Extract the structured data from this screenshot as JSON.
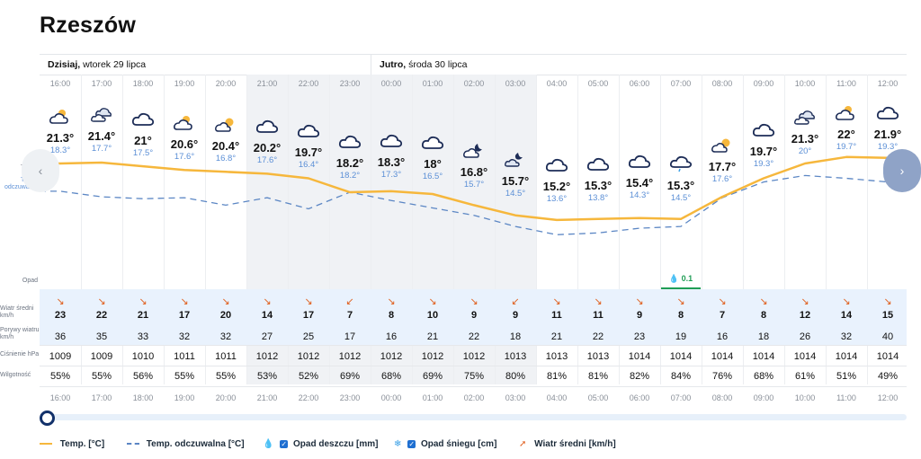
{
  "city": "Rzeszów",
  "today_label": "Dzisiaj,",
  "today_date": "wtorek 29 lipca",
  "tomorrow_label": "Jutro,",
  "tomorrow_date": "środa 30 lipca",
  "labels": {
    "temp": "Temp.",
    "feel": "Temp. odczuwalna",
    "precip": "Opad",
    "wind": "Wiatr średni km/h",
    "gusts": "Porywy wiatru km/h",
    "pressure": "Ciśnienie hPa",
    "humidity": "Wilgotność"
  },
  "hours": [
    {
      "time": "16:00",
      "temp": "21.3°",
      "feel": "18.3°",
      "icon": "partly-cloudy-icon",
      "wind": "23",
      "gust": "36",
      "pressure": "1009",
      "humidity": "55%"
    },
    {
      "time": "17:00",
      "temp": "21.4°",
      "feel": "17.7°",
      "icon": "cloudy-sun-icon",
      "wind": "22",
      "gust": "35",
      "pressure": "1009",
      "humidity": "55%"
    },
    {
      "time": "18:00",
      "temp": "21°",
      "feel": "17.5°",
      "icon": "cloud-icon",
      "wind": "21",
      "gust": "33",
      "pressure": "1010",
      "humidity": "56%"
    },
    {
      "time": "19:00",
      "temp": "20.6°",
      "feel": "17.6°",
      "icon": "partly-cloudy-icon",
      "wind": "17",
      "gust": "32",
      "pressure": "1011",
      "humidity": "55%"
    },
    {
      "time": "20:00",
      "temp": "20.4°",
      "feel": "16.8°",
      "icon": "sun-cloud-icon",
      "wind": "20",
      "gust": "32",
      "pressure": "1011",
      "humidity": "55%"
    },
    {
      "time": "21:00",
      "temp": "20.2°",
      "feel": "17.6°",
      "icon": "cloud-icon",
      "wind": "14",
      "gust": "27",
      "pressure": "1012",
      "humidity": "53%"
    },
    {
      "time": "22:00",
      "temp": "19.7°",
      "feel": "16.4°",
      "icon": "cloud-icon",
      "wind": "17",
      "gust": "25",
      "pressure": "1012",
      "humidity": "52%"
    },
    {
      "time": "23:00",
      "temp": "18.2°",
      "feel": "18.2°",
      "icon": "cloud-icon",
      "wind": "7",
      "gust": "17",
      "pressure": "1012",
      "humidity": "69%"
    },
    {
      "time": "00:00",
      "temp": "18.3°",
      "feel": "17.3°",
      "icon": "cloud-icon",
      "wind": "8",
      "gust": "16",
      "pressure": "1012",
      "humidity": "68%"
    },
    {
      "time": "01:00",
      "temp": "18°",
      "feel": "16.5°",
      "icon": "cloud-icon",
      "wind": "10",
      "gust": "21",
      "pressure": "1012",
      "humidity": "69%"
    },
    {
      "time": "02:00",
      "temp": "16.8°",
      "feel": "15.7°",
      "icon": "moon-cloud-icon",
      "wind": "9",
      "gust": "22",
      "pressure": "1012",
      "humidity": "75%"
    },
    {
      "time": "03:00",
      "temp": "15.7°",
      "feel": "14.5°",
      "icon": "moon-cloudy-icon",
      "wind": "9",
      "gust": "18",
      "pressure": "1013",
      "humidity": "80%"
    },
    {
      "time": "04:00",
      "temp": "15.2°",
      "feel": "13.6°",
      "icon": "cloud-icon",
      "wind": "11",
      "gust": "21",
      "pressure": "1013",
      "humidity": "81%"
    },
    {
      "time": "05:00",
      "temp": "15.3°",
      "feel": "13.8°",
      "icon": "cloud-icon",
      "wind": "11",
      "gust": "22",
      "pressure": "1013",
      "humidity": "81%"
    },
    {
      "time": "06:00",
      "temp": "15.4°",
      "feel": "14.3°",
      "icon": "cloud-icon",
      "wind": "9",
      "gust": "23",
      "pressure": "1014",
      "humidity": "82%"
    },
    {
      "time": "07:00",
      "temp": "15.3°",
      "feel": "14.5°",
      "icon": "rain-cloud-icon",
      "wind": "8",
      "gust": "19",
      "pressure": "1014",
      "humidity": "84%",
      "rain": "0.1"
    },
    {
      "time": "08:00",
      "temp": "17.7°",
      "feel": "17.6°",
      "icon": "sun-cloud-icon",
      "wind": "7",
      "gust": "16",
      "pressure": "1014",
      "humidity": "76%"
    },
    {
      "time": "09:00",
      "temp": "19.7°",
      "feel": "19.3°",
      "icon": "cloud-icon",
      "wind": "8",
      "gust": "18",
      "pressure": "1014",
      "humidity": "68%"
    },
    {
      "time": "10:00",
      "temp": "21.3°",
      "feel": "20°",
      "icon": "cloudy-sun-icon",
      "wind": "12",
      "gust": "26",
      "pressure": "1014",
      "humidity": "61%"
    },
    {
      "time": "11:00",
      "temp": "22°",
      "feel": "19.7°",
      "icon": "partly-cloudy-icon",
      "wind": "14",
      "gust": "32",
      "pressure": "1014",
      "humidity": "51%"
    },
    {
      "time": "12:00",
      "temp": "21.9°",
      "feel": "19.3°",
      "icon": "cloud-icon",
      "wind": "15",
      "gust": "40",
      "pressure": "1014",
      "humidity": "49%"
    }
  ],
  "legend": {
    "temp": "Temp. [°C]",
    "feel": "Temp. odczuwalna [°C]",
    "rain": "Opad deszczu [mm]",
    "snow": "Opad śniegu [cm]",
    "wind": "Wiatr średni [km/h]"
  },
  "colors": {
    "temp_line": "#f6b73c",
    "feel_line": "#5b86c4",
    "accent": "#12316a",
    "wind_arrow": "#e0601f",
    "rain": "#1f9d55"
  }
}
